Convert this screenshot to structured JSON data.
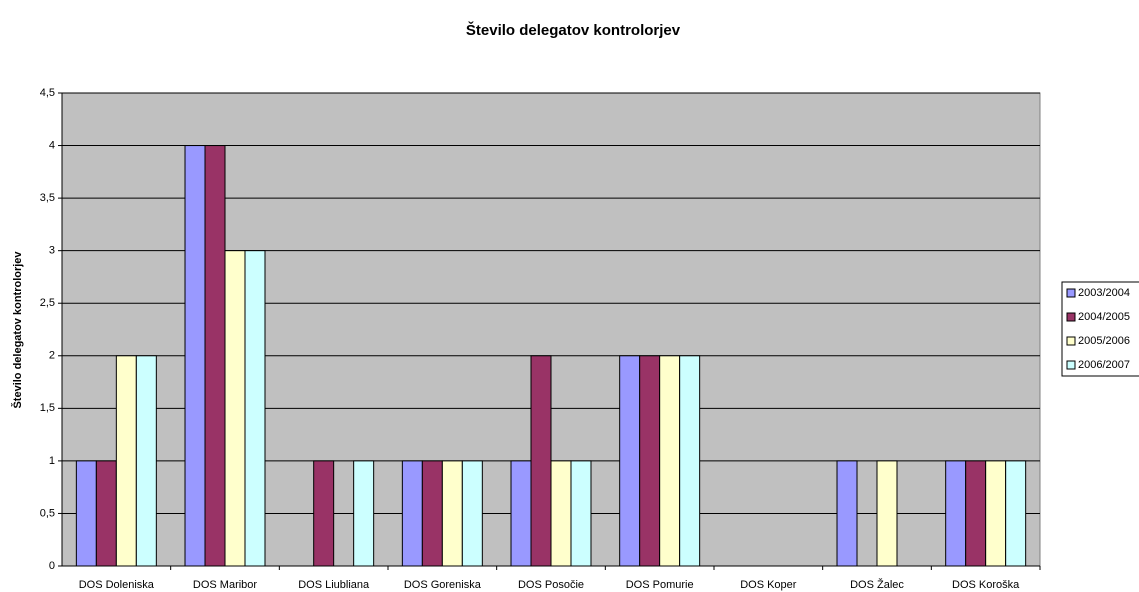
{
  "chart_data": {
    "type": "bar",
    "title": "Število delegatov kontrolorjev",
    "y_label": "Število delegatov kontrolorjev",
    "categories": [
      "DOS Doleniska",
      "DOS Maribor",
      "DOS Liubliana",
      "DOS Goreniska",
      "DOS Posočie",
      "DOS Pomurie",
      "DOS Koper",
      "DOS Žalec",
      "DOS Koroška"
    ],
    "series": [
      {
        "name": "2003/2004",
        "color": "#9999ff",
        "values": [
          1,
          4,
          0,
          1,
          1,
          2,
          0,
          1,
          1
        ]
      },
      {
        "name": "2004/2005",
        "color": "#993366",
        "values": [
          1,
          4,
          1,
          1,
          2,
          2,
          0,
          0,
          1
        ]
      },
      {
        "name": "2005/2006",
        "color": "#ffffcc",
        "values": [
          2,
          3,
          0,
          1,
          1,
          2,
          0,
          1,
          1
        ]
      },
      {
        "name": "2006/2007",
        "color": "#ccffff",
        "values": [
          2,
          3,
          1,
          1,
          1,
          2,
          0,
          0,
          1
        ]
      }
    ],
    "ylim": [
      0,
      4.5
    ],
    "yticks": [
      0,
      {
        "value": 0.5,
        "label": "0,5"
      },
      1,
      {
        "value": 1.5,
        "label": "1,5"
      },
      2,
      {
        "value": 2.5,
        "label": "2,5"
      },
      3,
      {
        "value": 3.5,
        "label": "3,5"
      },
      4,
      {
        "value": 4.5,
        "label": "4,5"
      }
    ],
    "grid": true,
    "legend": "right"
  }
}
